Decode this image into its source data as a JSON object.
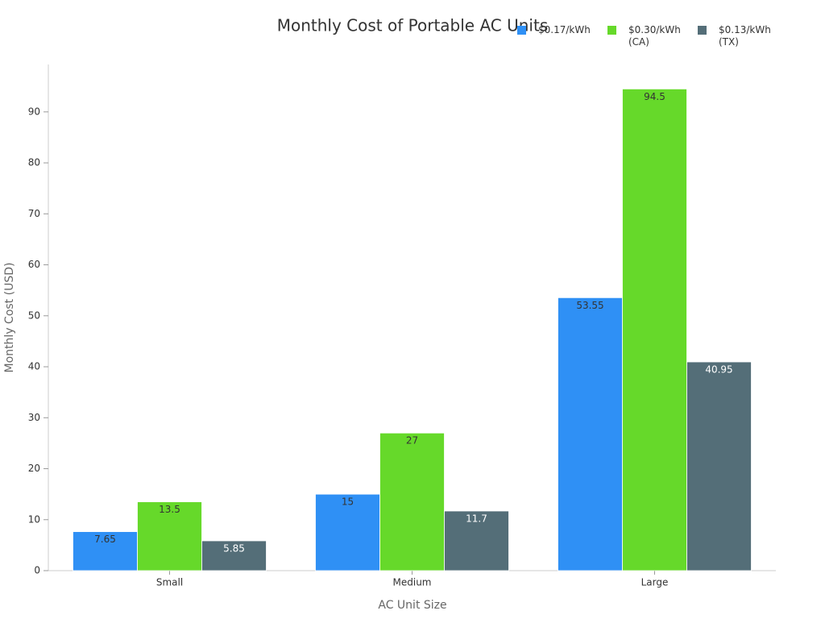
{
  "chart_data": {
    "type": "bar",
    "title": "Monthly Cost of Portable AC Units",
    "x_label": "AC Unit Size",
    "y_label": "Monthly Cost (USD)",
    "categories": [
      "Small",
      "Medium",
      "Large"
    ],
    "series": [
      {
        "name": "$0.17/kWh",
        "color": "#2f90f5",
        "values": [
          7.65,
          15,
          53.55
        ]
      },
      {
        "name": "$0.30/kWh (CA)",
        "color": "#66d92a",
        "values": [
          13.5,
          27,
          94.5
        ]
      },
      {
        "name": "$0.13/kWh (TX)",
        "color": "#546e78",
        "values": [
          5.85,
          11.7,
          40.95
        ]
      }
    ],
    "ylim": [
      0,
      99.3
    ],
    "yticks": [
      0,
      10,
      20,
      30,
      40,
      50,
      60,
      70,
      80,
      90
    ],
    "legend": "top-right"
  }
}
